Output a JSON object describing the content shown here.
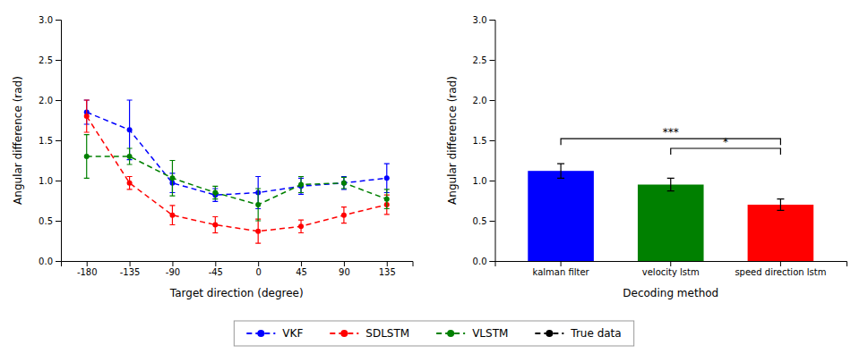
{
  "chart_data": [
    {
      "type": "line",
      "xlabel": "Target direction (degree)",
      "ylabel": "Angular difference (rad)",
      "x": [
        -180,
        -135,
        -90,
        -45,
        0,
        45,
        90,
        135
      ],
      "series": [
        {
          "name": "VKF",
          "color": "#0000ff",
          "line_style": "dashed",
          "marker": "circle",
          "values": [
            1.85,
            1.63,
            0.97,
            0.82,
            0.85,
            0.93,
            0.97,
            1.03
          ],
          "errors": [
            0.15,
            0.37,
            0.12,
            0.08,
            0.2,
            0.1,
            0.08,
            0.18
          ]
        },
        {
          "name": "SDLSTM",
          "color": "#ff0000",
          "line_style": "dashed",
          "marker": "circle",
          "values": [
            1.8,
            0.97,
            0.57,
            0.45,
            0.37,
            0.43,
            0.57,
            0.7
          ],
          "errors": [
            0.2,
            0.08,
            0.12,
            0.1,
            0.15,
            0.08,
            0.1,
            0.12
          ]
        },
        {
          "name": "VLSTM",
          "color": "#008000",
          "line_style": "dashed",
          "marker": "circle",
          "values": [
            1.3,
            1.3,
            1.03,
            0.85,
            0.7,
            0.95,
            0.97,
            0.77
          ],
          "errors": [
            0.27,
            0.1,
            0.22,
            0.08,
            0.2,
            0.1,
            0.07,
            0.12
          ]
        },
        {
          "name": "True data",
          "color": "#000000",
          "line_style": "dashed",
          "marker": "circle",
          "values": [
            null,
            null,
            null,
            null,
            null,
            null,
            null,
            null
          ]
        }
      ],
      "xlim": [
        -207,
        162
      ],
      "xticks": [
        -180,
        -135,
        -90,
        -45,
        0,
        45,
        90,
        135
      ],
      "ylim": [
        0.0,
        3.0
      ],
      "yticks": [
        {
          "value": 0.0,
          "label": "0.0"
        },
        0.5,
        {
          "value": 1.0,
          "label": "1.0"
        },
        1.5,
        {
          "value": 2.0,
          "label": "2.0"
        },
        2.5,
        {
          "value": 3.0,
          "label": "3.0"
        }
      ],
      "grid": false,
      "legend": "bottom"
    },
    {
      "type": "bar",
      "xlabel": "Decoding method",
      "ylabel": "Angular difference (rad)",
      "categories": [
        "kalman filter",
        "velocity lstm",
        "speed direction lstm"
      ],
      "values": [
        1.12,
        0.95,
        0.7
      ],
      "errors": [
        0.09,
        0.08,
        0.07
      ],
      "colors": [
        "#0000ff",
        "#008000",
        "#ff0000"
      ],
      "ylim": [
        0.0,
        3.0
      ],
      "yticks": [
        {
          "value": 0.0,
          "label": "0.0"
        },
        0.5,
        {
          "value": 1.0,
          "label": "1.0"
        },
        1.5,
        {
          "value": 2.0,
          "label": "2.0"
        },
        2.5,
        {
          "value": 3.0,
          "label": "3.0"
        }
      ],
      "grid": false,
      "annotations": [
        {
          "text": "***",
          "between": [
            "kalman filter",
            "speed direction lstm"
          ],
          "y": 1.52
        },
        {
          "text": "*",
          "between": [
            "velocity lstm",
            "speed direction lstm"
          ],
          "y": 1.4
        }
      ]
    }
  ]
}
